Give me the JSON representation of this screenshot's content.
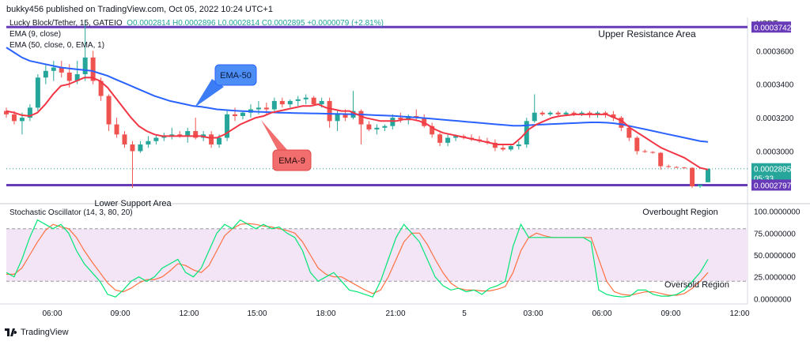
{
  "header": {
    "published": "bukky456 published on TradingView.com, Oct 05, 2022 10:24 UTC+1",
    "currency": "USDT"
  },
  "legend": {
    "symbol": "Lucky Block/Tether, 15, GATEIO",
    "ohlc": "O0.0002814 H0.0002896 L0.0002814 C0.0002895 +0.0000079 (+2.81%)",
    "ema9": "EMA (9, close)",
    "ema50": "EMA (50, close, 0, EMA, 1)",
    "stoch": "Stochastic Oscillator (14, 3, 80, 20)"
  },
  "annotations": {
    "upper": "Upper Resistance Area",
    "lower": "Lower Support Area",
    "ema50": "EMA-50",
    "ema9": "EMA-9",
    "overbought": "Overbought Region",
    "oversold": "Oversold Region"
  },
  "price_badges": {
    "upper": "0.0003742",
    "last": "0.0002895",
    "countdown": "05:33",
    "lower": "0.0002797"
  },
  "footer": {
    "brand": "TradingView"
  },
  "colors": {
    "up": "#26a69a",
    "down": "#ef5350",
    "ema9": "#f23645",
    "ema50": "#2962ff",
    "level": "#673ab7",
    "stoch_k": "#00e676",
    "stoch_d": "#ff7043",
    "band": "#f3e5f5"
  },
  "chart_data": [
    {
      "type": "line",
      "title": "Lucky Block/Tether, 15, GATEIO",
      "ylabel": "USDT",
      "ylim": [
        0.00027,
        0.00038
      ],
      "y_ticks": [
        "0.0003600",
        "0.0003400",
        "0.0003200",
        "0.0003000"
      ],
      "x_ticks": [
        "06:00",
        "09:00",
        "12:00",
        "15:00",
        "18:00",
        "21:00",
        "5",
        "03:00",
        "06:00",
        "09:00",
        "12:00"
      ],
      "levels": [
        {
          "name": "Upper Resistance Area",
          "value": 0.0003742
        },
        {
          "name": "Lower Support Area",
          "value": 0.0002797
        }
      ],
      "candles": [
        {
          "o": 0.000324,
          "h": 0.000326,
          "l": 0.00032,
          "c": 0.000322
        },
        {
          "o": 0.000322,
          "h": 0.000324,
          "l": 0.000316,
          "c": 0.000318
        },
        {
          "o": 0.000318,
          "h": 0.000323,
          "l": 0.00031,
          "c": 0.00032
        },
        {
          "o": 0.00032,
          "h": 0.000328,
          "l": 0.000318,
          "c": 0.000326
        },
        {
          "o": 0.000326,
          "h": 0.000346,
          "l": 0.000324,
          "c": 0.000344
        },
        {
          "o": 0.000344,
          "h": 0.000352,
          "l": 0.00034,
          "c": 0.000348
        },
        {
          "o": 0.000348,
          "h": 0.000354,
          "l": 0.000342,
          "c": 0.00035
        },
        {
          "o": 0.00035,
          "h": 0.000354,
          "l": 0.000344,
          "c": 0.000347
        },
        {
          "o": 0.000347,
          "h": 0.000352,
          "l": 0.000338,
          "c": 0.000342
        },
        {
          "o": 0.000342,
          "h": 0.000354,
          "l": 0.00034,
          "c": 0.000346
        },
        {
          "o": 0.000346,
          "h": 0.000378,
          "l": 0.000342,
          "c": 0.000356
        },
        {
          "o": 0.000356,
          "h": 0.00036,
          "l": 0.00034,
          "c": 0.000342
        },
        {
          "o": 0.000342,
          "h": 0.000344,
          "l": 0.00033,
          "c": 0.000333
        },
        {
          "o": 0.000333,
          "h": 0.000334,
          "l": 0.000312,
          "c": 0.000316
        },
        {
          "o": 0.000316,
          "h": 0.00032,
          "l": 0.000308,
          "c": 0.00031
        },
        {
          "o": 0.00031,
          "h": 0.000312,
          "l": 0.000302,
          "c": 0.000304
        },
        {
          "o": 0.000304,
          "h": 0.000306,
          "l": 0.000278,
          "c": 0.0003
        },
        {
          "o": 0.0003,
          "h": 0.000306,
          "l": 0.000299,
          "c": 0.000304
        },
        {
          "o": 0.000304,
          "h": 0.000309,
          "l": 0.000302,
          "c": 0.000306
        },
        {
          "o": 0.000306,
          "h": 0.00031,
          "l": 0.000304,
          "c": 0.000308
        },
        {
          "o": 0.000308,
          "h": 0.000311,
          "l": 0.000306,
          "c": 0.000309
        },
        {
          "o": 0.000309,
          "h": 0.000314,
          "l": 0.000307,
          "c": 0.00031
        },
        {
          "o": 0.00031,
          "h": 0.000312,
          "l": 0.000308,
          "c": 0.000309
        },
        {
          "o": 0.000309,
          "h": 0.000314,
          "l": 0.000305,
          "c": 0.000312
        },
        {
          "o": 0.000312,
          "h": 0.00032,
          "l": 0.000307,
          "c": 0.000308
        },
        {
          "o": 0.000308,
          "h": 0.000312,
          "l": 0.000306,
          "c": 0.00031
        },
        {
          "o": 0.00031,
          "h": 0.000312,
          "l": 0.000302,
          "c": 0.000304
        },
        {
          "o": 0.000304,
          "h": 0.00031,
          "l": 0.000302,
          "c": 0.000308
        },
        {
          "o": 0.000308,
          "h": 0.000324,
          "l": 0.000306,
          "c": 0.000322
        },
        {
          "o": 0.000322,
          "h": 0.000326,
          "l": 0.000318,
          "c": 0.000321
        },
        {
          "o": 0.000321,
          "h": 0.000324,
          "l": 0.000319,
          "c": 0.000323
        },
        {
          "o": 0.000323,
          "h": 0.000328,
          "l": 0.00032,
          "c": 0.000325
        },
        {
          "o": 0.000325,
          "h": 0.00033,
          "l": 0.000322,
          "c": 0.000326
        },
        {
          "o": 0.000326,
          "h": 0.000329,
          "l": 0.000322,
          "c": 0.000325
        },
        {
          "o": 0.000325,
          "h": 0.000332,
          "l": 0.000323,
          "c": 0.00033
        },
        {
          "o": 0.00033,
          "h": 0.000332,
          "l": 0.000326,
          "c": 0.000328
        },
        {
          "o": 0.000328,
          "h": 0.000331,
          "l": 0.000326,
          "c": 0.00033
        },
        {
          "o": 0.00033,
          "h": 0.000333,
          "l": 0.000327,
          "c": 0.000331
        },
        {
          "o": 0.000331,
          "h": 0.000334,
          "l": 0.000328,
          "c": 0.000332
        },
        {
          "o": 0.000332,
          "h": 0.000333,
          "l": 0.000327,
          "c": 0.000328
        },
        {
          "o": 0.000328,
          "h": 0.000332,
          "l": 0.000326,
          "c": 0.00033
        },
        {
          "o": 0.00033,
          "h": 0.000332,
          "l": 0.000314,
          "c": 0.000318
        },
        {
          "o": 0.000318,
          "h": 0.000325,
          "l": 0.000312,
          "c": 0.000322
        },
        {
          "o": 0.000322,
          "h": 0.000325,
          "l": 0.000318,
          "c": 0.00032
        },
        {
          "o": 0.00032,
          "h": 0.000336,
          "l": 0.000319,
          "c": 0.000324
        },
        {
          "o": 0.000324,
          "h": 0.000325,
          "l": 0.000304,
          "c": 0.000316
        },
        {
          "o": 0.000316,
          "h": 0.000318,
          "l": 0.000312,
          "c": 0.000313
        },
        {
          "o": 0.000313,
          "h": 0.000316,
          "l": 0.00031,
          "c": 0.000314
        },
        {
          "o": 0.000314,
          "h": 0.000316,
          "l": 0.000312,
          "c": 0.000315
        },
        {
          "o": 0.000315,
          "h": 0.000322,
          "l": 0.000313,
          "c": 0.00032
        },
        {
          "o": 0.00032,
          "h": 0.000323,
          "l": 0.000317,
          "c": 0.000319
        },
        {
          "o": 0.000319,
          "h": 0.000322,
          "l": 0.000316,
          "c": 0.000321
        },
        {
          "o": 0.000321,
          "h": 0.000325,
          "l": 0.000318,
          "c": 0.00032
        },
        {
          "o": 0.00032,
          "h": 0.000322,
          "l": 0.000314,
          "c": 0.000315
        },
        {
          "o": 0.000315,
          "h": 0.000317,
          "l": 0.000308,
          "c": 0.00031
        },
        {
          "o": 0.00031,
          "h": 0.000311,
          "l": 0.000303,
          "c": 0.000305
        },
        {
          "o": 0.000305,
          "h": 0.00031,
          "l": 0.000303,
          "c": 0.000308
        },
        {
          "o": 0.000308,
          "h": 0.00031,
          "l": 0.000306,
          "c": 0.000309
        },
        {
          "o": 0.000309,
          "h": 0.00031,
          "l": 0.000307,
          "c": 0.000308
        },
        {
          "o": 0.000308,
          "h": 0.00031,
          "l": 0.000306,
          "c": 0.000307
        },
        {
          "o": 0.000307,
          "h": 0.000309,
          "l": 0.000305,
          "c": 0.000306
        },
        {
          "o": 0.000306,
          "h": 0.000308,
          "l": 0.000304,
          "c": 0.000305
        },
        {
          "o": 0.000305,
          "h": 0.000307,
          "l": 0.0003,
          "c": 0.000302
        },
        {
          "o": 0.000302,
          "h": 0.000304,
          "l": 0.0003,
          "c": 0.000301
        },
        {
          "o": 0.000301,
          "h": 0.000304,
          "l": 0.0003,
          "c": 0.000303
        },
        {
          "o": 0.000303,
          "h": 0.000306,
          "l": 0.000301,
          "c": 0.000304
        },
        {
          "o": 0.000304,
          "h": 0.00032,
          "l": 0.000302,
          "c": 0.000318
        },
        {
          "o": 0.000318,
          "h": 0.000334,
          "l": 0.000317,
          "c": 0.000323
        },
        {
          "o": 0.000323,
          "h": 0.000324,
          "l": 0.000321,
          "c": 0.000322
        },
        {
          "o": 0.000322,
          "h": 0.000324,
          "l": 0.000321,
          "c": 0.000323
        },
        {
          "o": 0.000323,
          "h": 0.000324,
          "l": 0.000321,
          "c": 0.000322
        },
        {
          "o": 0.000322,
          "h": 0.000324,
          "l": 0.000321,
          "c": 0.000323
        },
        {
          "o": 0.000323,
          "h": 0.000324,
          "l": 0.000321,
          "c": 0.000322
        },
        {
          "o": 0.000322,
          "h": 0.000324,
          "l": 0.000321,
          "c": 0.000323
        },
        {
          "o": 0.000323,
          "h": 0.000324,
          "l": 0.00032,
          "c": 0.000322
        },
        {
          "o": 0.000322,
          "h": 0.000324,
          "l": 0.00032,
          "c": 0.000323
        },
        {
          "o": 0.000323,
          "h": 0.000324,
          "l": 0.00032,
          "c": 0.000322
        },
        {
          "o": 0.000322,
          "h": 0.000324,
          "l": 0.000318,
          "c": 0.00032
        },
        {
          "o": 0.00032,
          "h": 0.000321,
          "l": 0.000312,
          "c": 0.000314
        },
        {
          "o": 0.000314,
          "h": 0.000315,
          "l": 0.000306,
          "c": 0.000308
        },
        {
          "o": 0.000308,
          "h": 0.000309,
          "l": 0.000298,
          "c": 0.0003
        },
        {
          "o": 0.0003,
          "h": 0.000301,
          "l": 0.000299,
          "c": 0.0002995
        },
        {
          "o": 0.0002995,
          "h": 0.0003,
          "l": 0.0002985,
          "c": 0.000299
        },
        {
          "o": 0.000299,
          "h": 0.0002995,
          "l": 0.000289,
          "c": 0.000291
        },
        {
          "o": 0.000291,
          "h": 0.000292,
          "l": 0.00029,
          "c": 0.0002905
        },
        {
          "o": 0.0002905,
          "h": 0.000291,
          "l": 0.00029,
          "c": 0.0002902
        },
        {
          "o": 0.0002902,
          "h": 0.0002906,
          "l": 0.0002898,
          "c": 0.00029
        },
        {
          "o": 0.00029,
          "h": 0.0002904,
          "l": 0.000278,
          "c": 0.000279
        },
        {
          "o": 0.000279,
          "h": 0.00028,
          "l": 0.000278,
          "c": 0.00028
        },
        {
          "o": 0.0002814,
          "h": 0.0002896,
          "l": 0.0002814,
          "c": 0.0002895
        }
      ],
      "ema9": [
        0.000324,
        0.000323,
        0.0003215,
        0.000321,
        0.000323,
        0.000328,
        0.000334,
        0.000339,
        0.00034,
        0.000342,
        0.000344,
        0.000344,
        0.000342,
        0.000338,
        0.000332,
        0.000326,
        0.00032,
        0.000315,
        0.000312,
        0.00031,
        0.000309,
        0.000309,
        0.000309,
        0.000309,
        0.000309,
        0.000309,
        0.000308,
        0.000308,
        0.00031,
        0.000313,
        0.000316,
        0.000318,
        0.00032,
        0.000321,
        0.000323,
        0.000324,
        0.000325,
        0.000326,
        0.000327,
        0.000327,
        0.000328,
        0.000326,
        0.000325,
        0.000324,
        0.000324,
        0.000322,
        0.00032,
        0.000319,
        0.000318,
        0.000318,
        0.000318,
        0.000319,
        0.000319,
        0.000318,
        0.000316,
        0.000313,
        0.000311,
        0.00031,
        0.000309,
        0.000308,
        0.000307,
        0.000306,
        0.000305,
        0.000304,
        0.000304,
        0.000304,
        0.000308,
        0.000313,
        0.000316,
        0.000318,
        0.00032,
        0.000321,
        0.0003215,
        0.000322,
        0.000322,
        0.000322,
        0.000322,
        0.000322,
        0.00032,
        0.000318,
        0.000314,
        0.000311,
        0.000308,
        0.000305,
        0.000302,
        0.0003,
        0.000298,
        0.000296,
        0.000293,
        0.00029,
        0.000289
      ],
      "ema50": [
        0.000362,
        0.000359,
        0.000356,
        0.000354,
        0.000353,
        0.000352,
        0.000351,
        0.00035,
        0.0003495,
        0.000349,
        0.0003485,
        0.000348,
        0.0003465,
        0.000345,
        0.000343,
        0.000341,
        0.000339,
        0.000337,
        0.000335,
        0.000333,
        0.0003315,
        0.00033,
        0.000329,
        0.000328,
        0.000327,
        0.0003265,
        0.0003258,
        0.000325,
        0.0003246,
        0.0003243,
        0.000324,
        0.0003238,
        0.0003236,
        0.0003234,
        0.0003232,
        0.000323,
        0.0003229,
        0.0003228,
        0.0003227,
        0.0003226,
        0.0003225,
        0.0003224,
        0.0003223,
        0.0003222,
        0.0003221,
        0.000322,
        0.0003218,
        0.0003216,
        0.0003214,
        0.0003212,
        0.000321,
        0.0003206,
        0.0003203,
        0.00032,
        0.0003196,
        0.0003192,
        0.0003188,
        0.0003184,
        0.000318,
        0.0003176,
        0.0003172,
        0.0003168,
        0.0003164,
        0.000316,
        0.0003156,
        0.0003152,
        0.0003152,
        0.0003155,
        0.0003158,
        0.000316,
        0.0003162,
        0.0003164,
        0.0003166,
        0.0003168,
        0.000317,
        0.0003172,
        0.0003172,
        0.000317,
        0.0003166,
        0.000316,
        0.000315,
        0.000314,
        0.000313,
        0.000312,
        0.000311,
        0.00031,
        0.000309,
        0.000308,
        0.000307,
        0.000306,
        0.0003055
      ]
    },
    {
      "type": "line",
      "title": "Stochastic Oscillator (14, 3, 80, 20)",
      "ylim": [
        -5,
        105
      ],
      "y_ticks": [
        "100.0000000",
        "75.0000000",
        "50.0000000",
        "25.0000000",
        "0.0000000"
      ],
      "bands": {
        "upper": 80,
        "lower": 20
      },
      "series": [
        {
          "key": "k",
          "values": [
            30,
            25,
            45,
            70,
            90,
            85,
            80,
            85,
            75,
            55,
            40,
            30,
            20,
            5,
            2,
            10,
            20,
            25,
            20,
            25,
            35,
            40,
            45,
            30,
            25,
            35,
            55,
            75,
            85,
            80,
            90,
            85,
            80,
            85,
            80,
            82,
            75,
            70,
            55,
            30,
            20,
            25,
            30,
            20,
            10,
            8,
            5,
            2,
            20,
            45,
            70,
            85,
            75,
            65,
            45,
            25,
            15,
            10,
            12,
            8,
            10,
            5,
            12,
            15,
            20,
            60,
            85,
            70,
            70,
            70,
            70,
            70,
            70,
            70,
            70,
            65,
            10,
            5,
            3,
            2,
            3,
            10,
            10,
            5,
            3,
            3,
            5,
            10,
            20,
            30,
            45
          ]
        },
        {
          "key": "d",
          "values": [
            28,
            28,
            35,
            50,
            65,
            78,
            85,
            82,
            80,
            70,
            55,
            42,
            30,
            18,
            10,
            8,
            12,
            18,
            22,
            22,
            25,
            32,
            40,
            38,
            33,
            30,
            38,
            55,
            72,
            80,
            85,
            86,
            85,
            83,
            82,
            80,
            78,
            75,
            65,
            50,
            35,
            28,
            25,
            25,
            20,
            15,
            10,
            6,
            10,
            25,
            45,
            65,
            75,
            75,
            62,
            45,
            30,
            18,
            12,
            10,
            10,
            9,
            9,
            11,
            14,
            30,
            55,
            70,
            75,
            72,
            70,
            70,
            70,
            70,
            70,
            70,
            45,
            20,
            8,
            5,
            4,
            6,
            8,
            8,
            6,
            4,
            4,
            6,
            12,
            20,
            30
          ]
        }
      ]
    }
  ]
}
